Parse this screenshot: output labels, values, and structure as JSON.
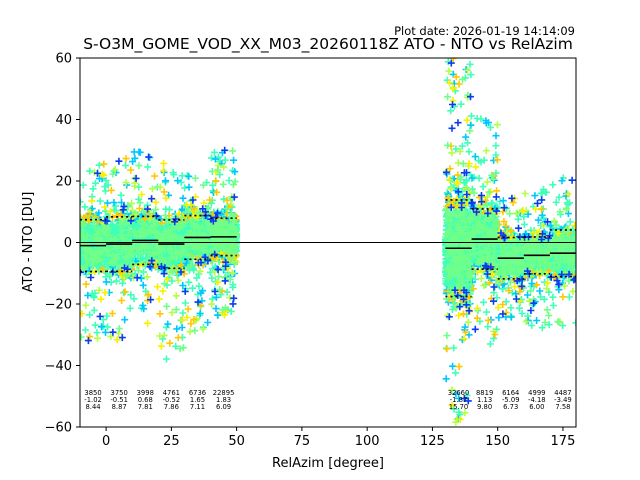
{
  "chart_data": {
    "type": "scatter",
    "plot_date": "Plot date: 2026-01-19 14:14:09",
    "title": "S-O3M_GOME_VOD_XX_M03_20260118Z ATO - NTO vs RelAzim",
    "xlabel": "RelAzim [degree]",
    "ylabel": "ATO - NTO [DU]",
    "xlim": [
      -10,
      180
    ],
    "ylim": [
      -60,
      60
    ],
    "xticks": [
      0,
      25,
      50,
      75,
      100,
      125,
      150,
      175
    ],
    "yticks": [
      -60,
      -40,
      -20,
      0,
      20,
      40,
      60
    ],
    "xtick_labels": [
      "0",
      "25",
      "50",
      "75",
      "100",
      "125",
      "150",
      "175"
    ],
    "ytick_labels": [
      "−60",
      "−40",
      "−20",
      "0",
      "20",
      "40",
      "60"
    ],
    "zero_line": 0,
    "colors": {
      "primary": "#40ffb8",
      "cyan": "#00c8ff",
      "blue": "#0a3cf0",
      "lime": "#b4ff46",
      "yellow": "#f8f000",
      "gold": "#ffc800",
      "green": "#70ff88",
      "mean": "#000000"
    },
    "bins": [
      {
        "x0": -10,
        "x1": 0,
        "count": "3850",
        "mean": "-1.02",
        "std": "8.44",
        "mean_val": -1.02,
        "std_val": 8.44,
        "spread": [
          -32,
          26
        ]
      },
      {
        "x0": 0,
        "x1": 10,
        "count": "3750",
        "mean": "-0.51",
        "std": "8.87",
        "mean_val": -0.51,
        "std_val": 8.87,
        "spread": [
          -32,
          28
        ]
      },
      {
        "x0": 10,
        "x1": 20,
        "count": "3998",
        "mean": "0.68",
        "std": "7.81",
        "mean_val": 0.68,
        "std_val": 7.81,
        "spread": [
          -28,
          30
        ]
      },
      {
        "x0": 20,
        "x1": 30,
        "count": "4761",
        "mean": "-0.52",
        "std": "7.86",
        "mean_val": -0.52,
        "std_val": 7.86,
        "spread": [
          -44,
          26
        ]
      },
      {
        "x0": 30,
        "x1": 40,
        "count": "6736",
        "mean": "1.65",
        "std": "7.11",
        "mean_val": 1.65,
        "std_val": 7.11,
        "spread": [
          -30,
          22
        ]
      },
      {
        "x0": 40,
        "x1": 50,
        "count": "22895",
        "mean": "1.83",
        "std": "6.09",
        "mean_val": 1.83,
        "std_val": 6.09,
        "spread": [
          -24,
          30
        ]
      },
      {
        "x0": 130,
        "x1": 140,
        "count": "32660",
        "mean": "-1.87",
        "std": "15.70",
        "mean_val": -1.87,
        "std_val": 15.7,
        "spread": [
          -60,
          60
        ]
      },
      {
        "x0": 140,
        "x1": 150,
        "count": "8819",
        "mean": "1.13",
        "std": "9.80",
        "mean_val": 1.13,
        "std_val": 9.8,
        "spread": [
          -34,
          42
        ]
      },
      {
        "x0": 150,
        "x1": 160,
        "count": "6164",
        "mean": "-5.09",
        "std": "6.73",
        "mean_val": -5.09,
        "std_val": 6.73,
        "spread": [
          -27,
          16
        ]
      },
      {
        "x0": 160,
        "x1": 170,
        "count": "4999",
        "mean": "-4.18",
        "std": "6.00",
        "mean_val": -4.18,
        "std_val": 6.0,
        "spread": [
          -28,
          18
        ]
      },
      {
        "x0": 170,
        "x1": 180,
        "count": "4487",
        "mean": "-3.49",
        "std": "7.58",
        "mean_val": -3.49,
        "std_val": 7.58,
        "spread": [
          -28,
          22
        ]
      }
    ]
  }
}
